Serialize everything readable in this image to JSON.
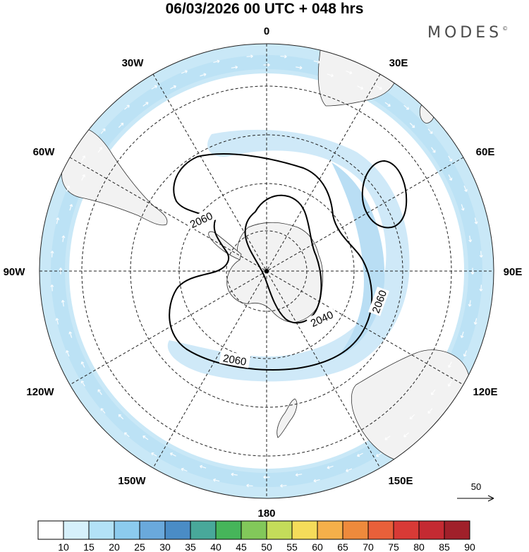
{
  "title": "06/03/2026  00 UTC  + 048 hrs",
  "brand": "MODES",
  "brand_mark": "©",
  "longitude_labels": [
    "0",
    "30E",
    "60E",
    "90E",
    "120E",
    "150E",
    "180",
    "150W",
    "120W",
    "90W",
    "60W",
    "30W"
  ],
  "contours": {
    "inner": "2040",
    "outer": "2060"
  },
  "reference_vector": "50",
  "colorbar": {
    "ticks": [
      "10",
      "15",
      "20",
      "25",
      "30",
      "35",
      "40",
      "45",
      "50",
      "55",
      "60",
      "65",
      "70",
      "75",
      "80",
      "85",
      "90"
    ],
    "colors": [
      "#ffffff",
      "#d6f0fb",
      "#b3e2f7",
      "#8ccbee",
      "#6aa9dc",
      "#4a8cc6",
      "#48a89a",
      "#46b55a",
      "#82c85a",
      "#c4dc5a",
      "#f5dc5a",
      "#f5b04a",
      "#ee8a3c",
      "#e8603a",
      "#d83a36",
      "#c42a32",
      "#a0202a"
    ]
  }
}
